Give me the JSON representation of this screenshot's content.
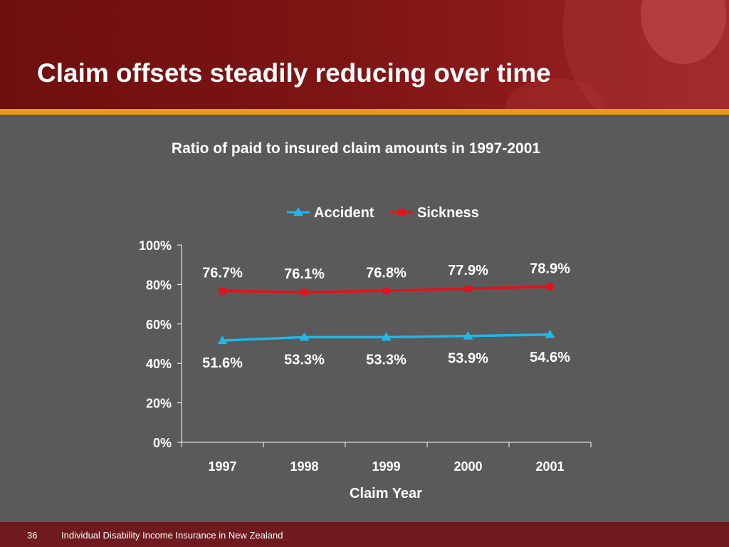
{
  "slide": {
    "title": "Claim offsets steadily reducing over time",
    "page_number": "36",
    "footer_text": "Individual Disability Income Insurance in New Zealand"
  },
  "colors": {
    "header": "#7d1414",
    "accent_band": "#e79b1d",
    "background": "#5a5a5a",
    "accident": "#1fb7e8",
    "sickness": "#e3121b"
  },
  "chart_data": {
    "type": "line",
    "title": "Ratio of paid to insured claim amounts in 1997-2001",
    "xlabel": "Claim Year",
    "ylabel": "",
    "categories": [
      "1997",
      "1998",
      "1999",
      "2000",
      "2001"
    ],
    "ylim": [
      0,
      100
    ],
    "yticks": [
      "0%",
      "20%",
      "40%",
      "60%",
      "80%",
      "100%"
    ],
    "grid": false,
    "legend_position": "top",
    "series": [
      {
        "name": "Accident",
        "marker": "triangle",
        "values": [
          51.6,
          53.3,
          53.3,
          53.9,
          54.6
        ],
        "labels": [
          "51.6%",
          "53.3%",
          "53.3%",
          "53.9%",
          "54.6%"
        ]
      },
      {
        "name": "Sickness",
        "marker": "square",
        "values": [
          76.7,
          76.1,
          76.8,
          77.9,
          78.9
        ],
        "labels": [
          "76.7%",
          "76.1%",
          "76.8%",
          "77.9%",
          "78.9%"
        ]
      }
    ]
  }
}
